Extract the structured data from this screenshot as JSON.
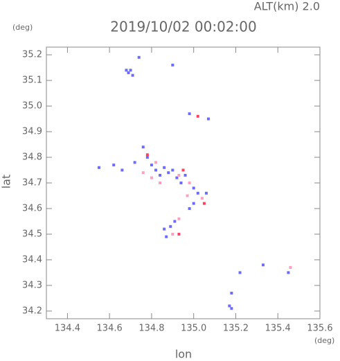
{
  "chart_data": {
    "type": "scatter",
    "title": "2019/10/02 00:02:00",
    "subtitle": "ALT(km) 2.0",
    "x_label": "lon",
    "y_label": "lat",
    "x_unit": "(deg)",
    "y_unit": "(deg)",
    "xlim": [
      134.3,
      135.6
    ],
    "ylim": [
      34.17,
      35.23
    ],
    "xticks": [
      134.4,
      134.6,
      134.8,
      {
        "value": 135,
        "label": "135.0"
      },
      135.2,
      135.4,
      135.6
    ],
    "yticks": [
      34.2,
      34.3,
      34.4,
      34.5,
      34.6,
      34.7,
      34.8,
      34.9,
      {
        "value": 35,
        "label": "35.0"
      },
      35.1,
      35.2
    ],
    "series": [
      {
        "color": "#6b6bff",
        "x": [
          134.7,
          134.69,
          134.71,
          134.68,
          134.74,
          134.9,
          135.07,
          134.55,
          134.62,
          134.66,
          134.72,
          134.76,
          134.78,
          134.8,
          134.82,
          134.84,
          134.86,
          134.88,
          134.9,
          134.92,
          134.94,
          134.96,
          135.0,
          135.02,
          135.0,
          134.98,
          135.06,
          134.86,
          134.87,
          134.89,
          134.91,
          135.18,
          135.17,
          135.18,
          135.22,
          135.45,
          135.33,
          134.98
        ],
        "y": [
          35.14,
          35.13,
          35.12,
          35.14,
          35.19,
          35.16,
          34.95,
          34.76,
          34.77,
          34.75,
          34.78,
          34.84,
          34.8,
          34.77,
          34.75,
          34.73,
          34.76,
          34.74,
          34.75,
          34.72,
          34.7,
          34.73,
          34.68,
          34.66,
          34.62,
          34.6,
          34.66,
          34.52,
          34.49,
          34.53,
          34.55,
          34.27,
          34.22,
          34.21,
          34.35,
          34.35,
          34.38,
          34.97
        ]
      },
      {
        "color": "#ff9ec0",
        "x": [
          134.76,
          134.82,
          134.84,
          134.93,
          134.97,
          135.04,
          134.9,
          134.93,
          135.46,
          134.98,
          134.8
        ],
        "y": [
          34.74,
          34.78,
          34.7,
          34.73,
          34.65,
          34.64,
          34.5,
          34.56,
          34.37,
          34.7,
          34.72
        ]
      },
      {
        "color": "#ff4060",
        "x": [
          135.02,
          134.78,
          134.93,
          135.05,
          134.95
        ],
        "y": [
          34.96,
          34.81,
          34.5,
          34.62,
          34.75
        ]
      }
    ]
  }
}
